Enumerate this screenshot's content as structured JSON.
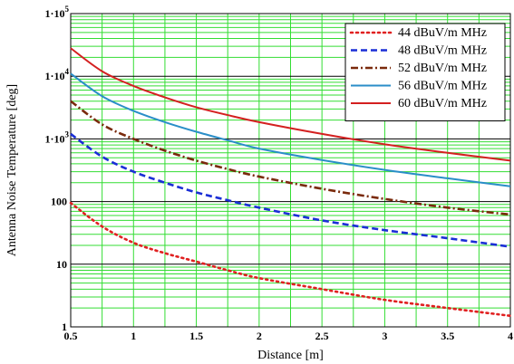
{
  "chart_data": {
    "type": "line",
    "title": "",
    "xlabel": "Distance [m]",
    "ylabel": "Antenna Noise Temperature [deg]",
    "xlim": [
      0.5,
      4
    ],
    "ylim": [
      1,
      100000
    ],
    "yscale": "log",
    "grid": true,
    "legend_position": "top-right",
    "x_ticks": [
      "0.5",
      "1",
      "1.5",
      "2",
      "2.5",
      "3",
      "3.5",
      "4"
    ],
    "y_ticks": [
      {
        "base": "1",
        "exp": ""
      },
      {
        "base": "10",
        "exp": ""
      },
      {
        "base": "100",
        "exp": ""
      },
      {
        "base": "1·10",
        "exp": "3"
      },
      {
        "base": "1·10",
        "exp": "4"
      },
      {
        "base": "1·10",
        "exp": "5"
      }
    ],
    "series": [
      {
        "name": "44 dBuV/m MHz",
        "color": "#e02020",
        "dash": "dotted",
        "x": [
          0.5,
          0.75,
          1,
          1.25,
          1.5,
          1.75,
          2,
          2.5,
          3,
          3.5,
          4
        ],
        "y": [
          95,
          40,
          22,
          15,
          11,
          8,
          6,
          4,
          2.7,
          2,
          1.5
        ]
      },
      {
        "name": "48 dBuV/m MHz",
        "color": "#1a2ed6",
        "dash": "dashed",
        "x": [
          0.5,
          0.75,
          1,
          1.25,
          1.5,
          1.75,
          2,
          2.5,
          3,
          3.5,
          4
        ],
        "y": [
          1200,
          520,
          300,
          200,
          140,
          105,
          80,
          50,
          35,
          26,
          19
        ]
      },
      {
        "name": "52 dBuV/m MHz",
        "color": "#7a2a0c",
        "dash": "dashdot",
        "x": [
          0.5,
          0.75,
          1,
          1.25,
          1.5,
          1.75,
          2,
          2.5,
          3,
          3.5,
          4
        ],
        "y": [
          4000,
          1700,
          1000,
          650,
          450,
          330,
          250,
          160,
          110,
          80,
          62
        ]
      },
      {
        "name": "56 dBuV/m MHz",
        "color": "#2a8ec8",
        "dash": "solid",
        "x": [
          0.5,
          0.75,
          1,
          1.25,
          1.5,
          1.75,
          2,
          2.5,
          3,
          3.5,
          4
        ],
        "y": [
          11000,
          4800,
          2800,
          1850,
          1300,
          950,
          700,
          460,
          320,
          235,
          175
        ]
      },
      {
        "name": "60 dBuV/m MHz",
        "color": "#d42020",
        "dash": "solid",
        "x": [
          0.5,
          0.75,
          1,
          1.25,
          1.5,
          1.75,
          2,
          2.5,
          3,
          3.5,
          4
        ],
        "y": [
          28000,
          12000,
          7000,
          4600,
          3200,
          2400,
          1850,
          1200,
          820,
          600,
          450
        ]
      }
    ]
  }
}
